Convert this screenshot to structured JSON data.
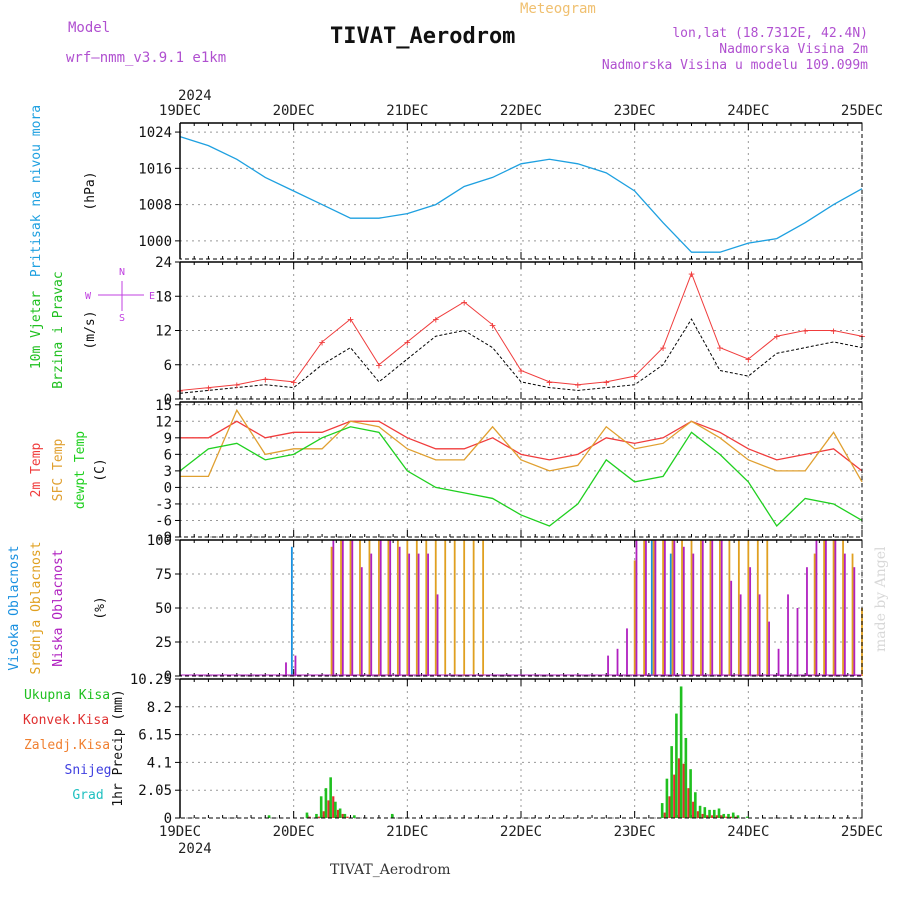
{
  "header": {
    "model_label": "Model",
    "model_name": "wrf–nmm_v3.9.1  e1km",
    "title": "TIVAT_Aerodrom",
    "product": "Meteogram",
    "lonlat": "lon,lat (18.7312E, 42.4N)",
    "elev": "Nadmorska Visina 2m",
    "model_elev": "Nadmorska Visina u modelu 109.099m",
    "footer": "TIVAT_Aerodrom",
    "credit": "made by Angel"
  },
  "colors": {
    "pressure": "#1ea0e0",
    "temp2m": "#f03c3c",
    "sfc": "#e0a030",
    "dew": "#20d020",
    "high_cloud": "#1890e0",
    "mid_cloud": "#e0a020",
    "low_cloud": "#b020c0",
    "precip": "#20c020",
    "convective": "#e03030",
    "frozen": "#f08030",
    "snow": "#4040e0",
    "hail": "#20c0c0",
    "wind_label": "#20c020",
    "dir_label": "#c040e0"
  },
  "chart_data": [
    {
      "type": "line",
      "panel": "pressure",
      "ylabel_lines": [
        "Pritisak na nivou mora",
        "(hPa)"
      ],
      "ylim": [
        996,
        1026
      ],
      "yticks": [
        1000,
        1008,
        1016,
        1024
      ],
      "x_hours": [
        0,
        6,
        12,
        18,
        24,
        30,
        36,
        42,
        48,
        54,
        60,
        66,
        72,
        78,
        84,
        90,
        96,
        102,
        108,
        114,
        120,
        126,
        132,
        138,
        144
      ],
      "values": [
        1023,
        1021,
        1018,
        1014,
        1011,
        1008,
        1005,
        1005,
        1006,
        1008,
        1012,
        1014,
        1017,
        1018,
        1017,
        1015,
        1011,
        1004,
        997.5,
        997.5,
        999.5,
        1000.5,
        1004,
        1008,
        1011.5
      ]
    },
    {
      "type": "line",
      "panel": "wind",
      "ylabel_lines": [
        "10m Vjetar",
        "Brzina i Pravac",
        "(m/s)"
      ],
      "ylim": [
        0,
        24
      ],
      "yticks": [
        0,
        6,
        12,
        18,
        24
      ],
      "compass": {
        "n": "N",
        "s": "S",
        "e": "E",
        "w": "W"
      },
      "x_hours": [
        0,
        6,
        12,
        18,
        24,
        30,
        36,
        42,
        48,
        54,
        60,
        66,
        72,
        78,
        84,
        90,
        96,
        102,
        108,
        114,
        120,
        126,
        132,
        138,
        144
      ],
      "speed": [
        1,
        1.5,
        2,
        2.5,
        2,
        6,
        9,
        3,
        7,
        11,
        12,
        9,
        3,
        2,
        1.5,
        2,
        2.5,
        6,
        14,
        5,
        4,
        8,
        9,
        10,
        9
      ],
      "gust": [
        1.5,
        2,
        2.5,
        3.5,
        3,
        10,
        14,
        6,
        10,
        14,
        17,
        13,
        5,
        3,
        2.5,
        3,
        4,
        9,
        22,
        9,
        7,
        11,
        12,
        12,
        11
      ]
    },
    {
      "type": "line",
      "panel": "temperature",
      "ylabel_lines": [
        "2m Temp",
        "SFC Temp",
        "dewpt Temp",
        "(C)"
      ],
      "ylim": [
        -9,
        15.5
      ],
      "yticks": [
        -9,
        -6,
        -3,
        0,
        3,
        6,
        9,
        12,
        15
      ],
      "x_hours": [
        0,
        6,
        12,
        18,
        24,
        30,
        36,
        42,
        48,
        54,
        60,
        66,
        72,
        78,
        84,
        90,
        96,
        102,
        108,
        114,
        120,
        126,
        132,
        138,
        144
      ],
      "series": [
        {
          "name": "2m Temp",
          "values": [
            9,
            9,
            12,
            9,
            10,
            10,
            12,
            12,
            9,
            7,
            7,
            9,
            6,
            5,
            6,
            9,
            8,
            9,
            12,
            10,
            7,
            5,
            6,
            7,
            3
          ]
        },
        {
          "name": "SFC Temp",
          "values": [
            2,
            2,
            14,
            6,
            7,
            7,
            12,
            11,
            7,
            5,
            5,
            11,
            5,
            3,
            4,
            11,
            7,
            8,
            12,
            9,
            5,
            3,
            3,
            10,
            1
          ]
        },
        {
          "name": "dewpt Temp",
          "values": [
            3,
            7,
            8,
            5,
            6,
            9,
            11,
            10,
            3,
            0,
            -1,
            -2,
            -5,
            -7,
            -3,
            5,
            1,
            2,
            10,
            6,
            1,
            -7,
            -2,
            -3,
            -6
          ]
        }
      ]
    },
    {
      "type": "bar",
      "panel": "cloud",
      "ylabel_lines": [
        "Visoka Oblacnost",
        "Srednja Oblacnost",
        "Niska Oblacnost",
        "(%)"
      ],
      "ylim": [
        0,
        100
      ],
      "yticks": [
        0,
        25,
        50,
        75,
        100
      ],
      "x_hours": [
        0,
        2,
        4,
        6,
        8,
        10,
        12,
        14,
        16,
        18,
        20,
        22,
        24,
        26,
        28,
        30,
        32,
        34,
        36,
        38,
        40,
        42,
        44,
        46,
        48,
        50,
        52,
        54,
        56,
        58,
        60,
        62,
        64,
        66,
        68,
        70,
        72,
        74,
        76,
        78,
        80,
        82,
        84,
        86,
        88,
        90,
        92,
        94,
        96,
        98,
        100,
        102,
        104,
        106,
        108,
        110,
        112,
        114,
        116,
        118,
        120,
        122,
        124,
        126,
        128,
        130,
        132,
        134,
        136,
        138,
        140,
        142,
        144
      ],
      "series": [
        {
          "name": "Visoka Oblacnost",
          "values": [
            0,
            0,
            0,
            0,
            0,
            0,
            0,
            0,
            0,
            0,
            0,
            0,
            95,
            0,
            0,
            0,
            0,
            0,
            0,
            0,
            0,
            0,
            0,
            0,
            0,
            0,
            0,
            0,
            0,
            0,
            0,
            0,
            0,
            0,
            0,
            0,
            0,
            0,
            0,
            0,
            0,
            0,
            0,
            0,
            0,
            0,
            0,
            0,
            0,
            0,
            100,
            0,
            90,
            0,
            0,
            0,
            0,
            0,
            0,
            0,
            0,
            0,
            0,
            0,
            0,
            0,
            0,
            0,
            0,
            0,
            0,
            0,
            0
          ]
        },
        {
          "name": "Srednja Oblacnost",
          "values": [
            0,
            0,
            0,
            0,
            0,
            0,
            0,
            0,
            0,
            0,
            0,
            0,
            0,
            0,
            0,
            0,
            95,
            100,
            100,
            100,
            100,
            100,
            100,
            100,
            100,
            100,
            100,
            100,
            100,
            100,
            100,
            100,
            100,
            0,
            0,
            0,
            0,
            0,
            0,
            0,
            0,
            0,
            0,
            0,
            0,
            0,
            0,
            0,
            85,
            100,
            100,
            100,
            100,
            100,
            100,
            100,
            100,
            100,
            100,
            100,
            100,
            100,
            100,
            0,
            0,
            0,
            0,
            90,
            100,
            100,
            100,
            90,
            50
          ]
        },
        {
          "name": "Niska Oblacnost",
          "values": [
            0,
            0,
            0,
            0,
            0,
            0,
            0,
            0,
            0,
            0,
            0,
            10,
            15,
            0,
            0,
            0,
            100,
            100,
            100,
            80,
            90,
            100,
            100,
            95,
            90,
            90,
            90,
            60,
            0,
            0,
            0,
            0,
            0,
            0,
            0,
            0,
            0,
            0,
            0,
            0,
            0,
            0,
            0,
            0,
            0,
            15,
            20,
            35,
            100,
            100,
            100,
            100,
            100,
            95,
            90,
            100,
            100,
            100,
            70,
            60,
            80,
            60,
            40,
            20,
            60,
            50,
            80,
            100,
            100,
            100,
            90,
            80,
            0
          ]
        }
      ]
    },
    {
      "type": "bar",
      "panel": "precipitation",
      "ylabel_lines": [
        "1hr Precip (mm)"
      ],
      "legend": [
        "Ukupna Kisa",
        "Konvek.Kisa",
        "Zaledj.Kisa",
        "Snijeg",
        "Grad"
      ],
      "ylim": [
        0,
        10.25
      ],
      "yticks": [
        0,
        2.05,
        4.1,
        6.15,
        8.2,
        10.25
      ],
      "x_hours": [
        19,
        27,
        29,
        30,
        31,
        32,
        33,
        34,
        35,
        37,
        45,
        102,
        103,
        104,
        105,
        106,
        107,
        108,
        109,
        110,
        111,
        112,
        113,
        114,
        115,
        116,
        117,
        118,
        120
      ],
      "series": [
        {
          "name": "Ukupna Kisa",
          "values": [
            0.2,
            0.4,
            0.3,
            1.6,
            2.2,
            3.0,
            1.2,
            0.7,
            0.3,
            0.2,
            0.3,
            1.1,
            2.9,
            5.3,
            7.7,
            9.7,
            5.9,
            3.6,
            1.9,
            0.9,
            0.8,
            0.6,
            0.6,
            0.7,
            0.3,
            0.3,
            0.4,
            0.2,
            0.1
          ]
        },
        {
          "name": "Konvek.Kisa",
          "values": [
            0,
            0.1,
            0.1,
            0.5,
            1.3,
            1.6,
            0.6,
            0.3,
            0.1,
            0,
            0,
            0.4,
            1.6,
            3.2,
            4.4,
            4.0,
            2.2,
            1.2,
            0.5,
            0.3,
            0.2,
            0.2,
            0.2,
            0.2,
            0.1,
            0.1,
            0.1,
            0,
            0
          ]
        }
      ]
    }
  ],
  "time_axis": {
    "year": "2024",
    "day_labels": [
      "19DEC",
      "20DEC",
      "21DEC",
      "22DEC",
      "23DEC",
      "24DEC",
      "25DEC"
    ]
  }
}
